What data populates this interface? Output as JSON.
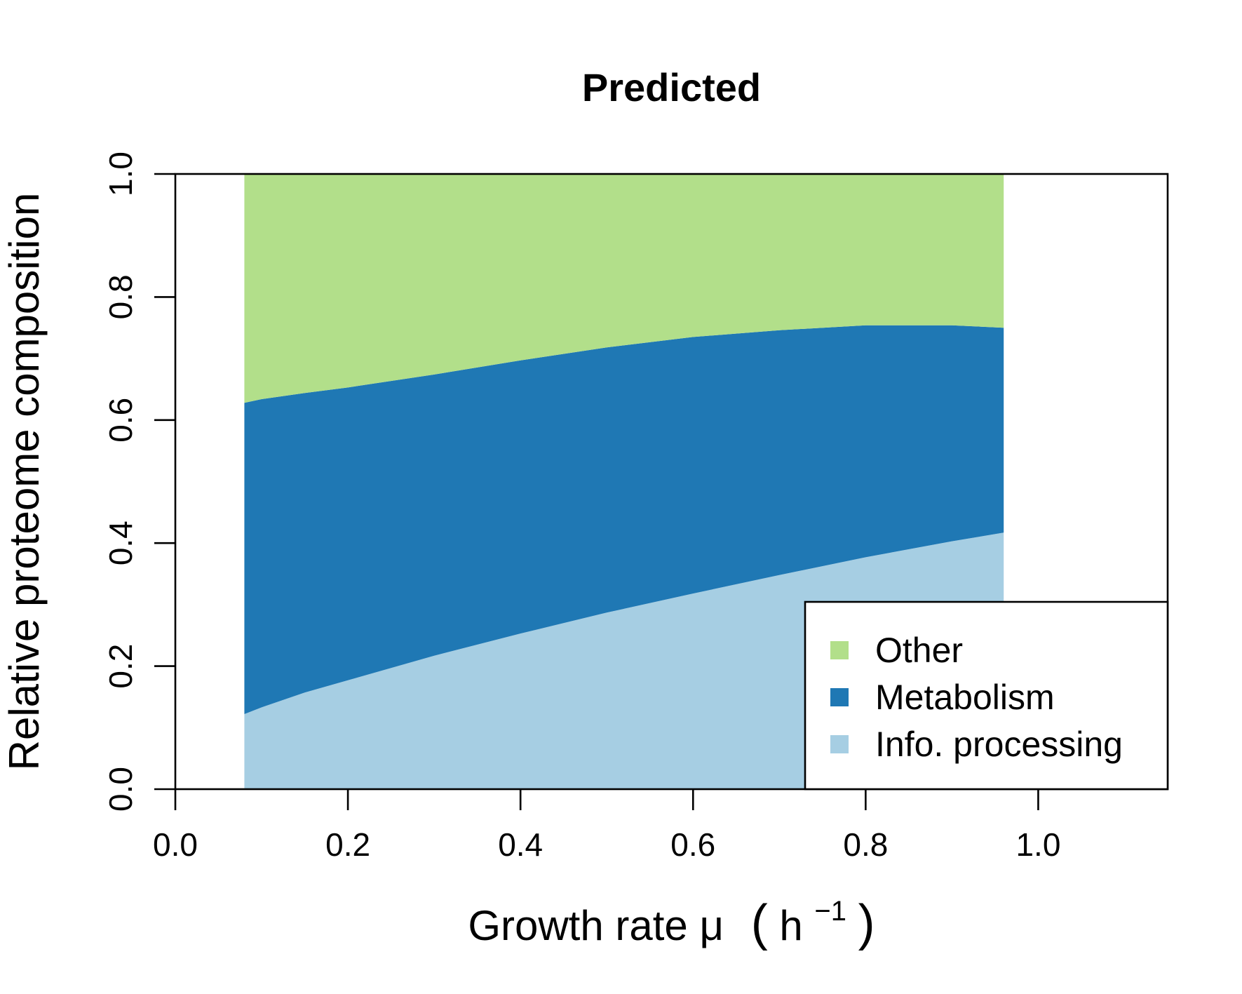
{
  "chart_data": {
    "type": "area",
    "stacked": true,
    "title": "Predicted",
    "xlabel": "Growth rate μ",
    "xlabel_unit_base": "h",
    "xlabel_unit_exp": "−1",
    "ylabel": "Relative proteome composition",
    "xlim": [
      0.0,
      1.15
    ],
    "ylim": [
      0.0,
      1.0
    ],
    "x_ticks": [
      0.0,
      0.2,
      0.4,
      0.6,
      0.8,
      1.0
    ],
    "x_tick_labels": [
      "0.0",
      "0.2",
      "0.4",
      "0.6",
      "0.8",
      "1.0"
    ],
    "y_ticks": [
      0.0,
      0.2,
      0.4,
      0.6,
      0.8,
      1.0
    ],
    "y_tick_labels": [
      "0.0",
      "0.2",
      "0.4",
      "0.6",
      "0.8",
      "1.0"
    ],
    "grid": false,
    "legend_position": "bottom-right",
    "x": [
      0.08,
      0.1,
      0.15,
      0.2,
      0.3,
      0.4,
      0.5,
      0.6,
      0.7,
      0.8,
      0.9,
      0.96
    ],
    "series": [
      {
        "name": "Info. processing",
        "color": "#a6cee3",
        "values": [
          0.122,
          0.133,
          0.157,
          0.177,
          0.217,
          0.253,
          0.287,
          0.318,
          0.348,
          0.377,
          0.403,
          0.417
        ]
      },
      {
        "name": "Metabolism",
        "color": "#1f78b4",
        "values": [
          0.506,
          0.501,
          0.487,
          0.476,
          0.457,
          0.444,
          0.431,
          0.417,
          0.398,
          0.377,
          0.351,
          0.333
        ]
      },
      {
        "name": "Other",
        "color": "#b2df8a",
        "values": [
          0.372,
          0.366,
          0.356,
          0.347,
          0.326,
          0.303,
          0.282,
          0.265,
          0.254,
          0.246,
          0.246,
          0.25
        ]
      }
    ],
    "legend_order": [
      "Other",
      "Metabolism",
      "Info. processing"
    ]
  }
}
